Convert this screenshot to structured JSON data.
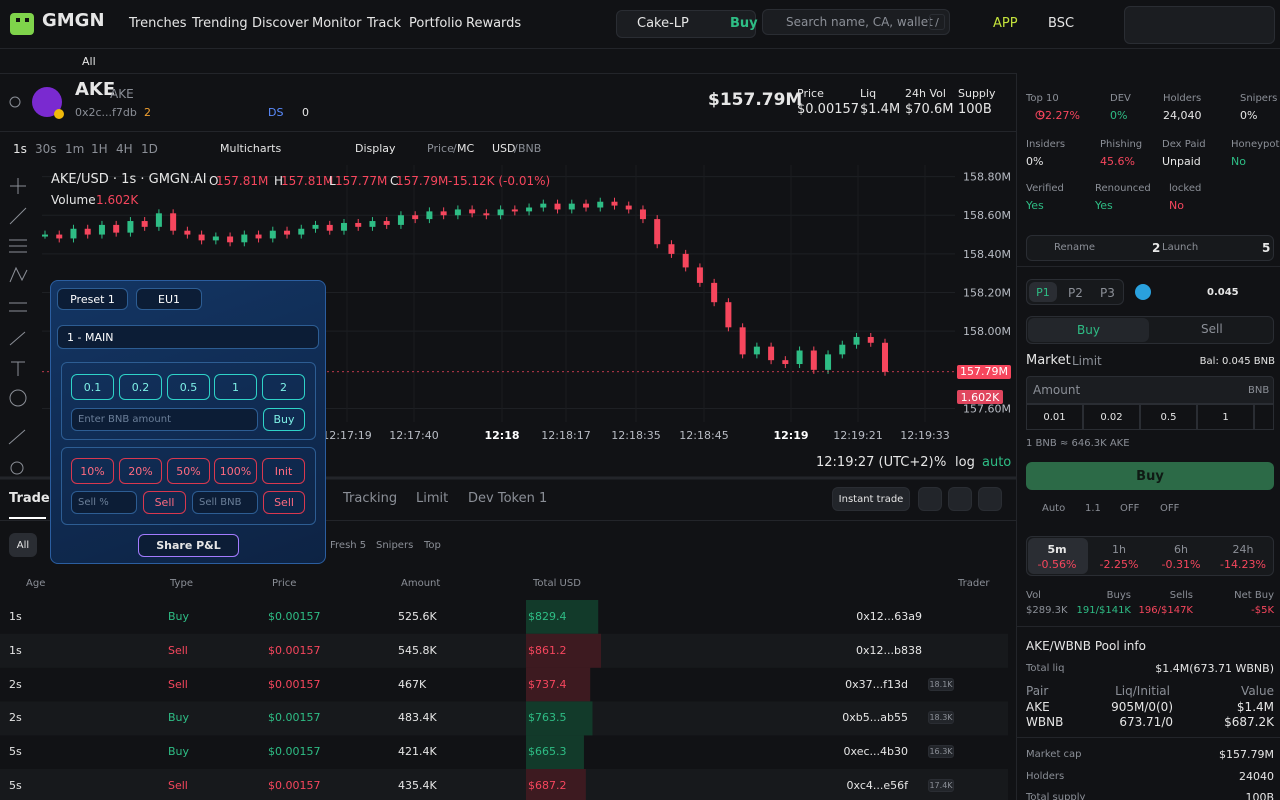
{
  "header": {
    "logo": "GMGN",
    "nav": [
      "Trenches",
      "Trending",
      "Discover",
      "Monitor",
      "Track",
      "Portfolio",
      "Rewards"
    ],
    "quick_pair": "Cake-LP",
    "quick_buy": "Buy",
    "search_placeholder": "Search name, CA, wallet",
    "search_key": "/",
    "app": "APP",
    "chain": "BSC"
  },
  "subbar": {
    "filter": "All"
  },
  "token": {
    "name": "AKE",
    "symbol": "AKE",
    "address": "0x2c...f7db",
    "dev_count": "2",
    "ds": "DS",
    "count": "0",
    "market_cap": "$157.79M",
    "stats": [
      {
        "label": "Price",
        "value": "$0.00157"
      },
      {
        "label": "Liq",
        "value": "$1.4M"
      },
      {
        "label": "24h Vol",
        "value": "$70.6M"
      },
      {
        "label": "Supply",
        "value": "100B"
      }
    ]
  },
  "toolbar": {
    "intervals": [
      "1s",
      "30s",
      "1m",
      "1H",
      "4H",
      "1D"
    ],
    "multicharts": "Multicharts",
    "display": "Display",
    "price": "Price",
    "sep1": "/",
    "mc": "MC",
    "usd": "USD",
    "sep2": "/",
    "bnb": "BNB"
  },
  "chart_data": {
    "type": "candlestick",
    "title": "AKE/USD · 1s · GMGN.AI",
    "ohlc": [
      {
        "label": "O",
        "value": "157.81M"
      },
      {
        "label": "H",
        "value": "157.81M"
      },
      {
        "label": "L",
        "value": "157.77M"
      },
      {
        "label": "C",
        "value": "157.79M"
      }
    ],
    "change": "-15.12K (-0.01%)",
    "volume_label": "Volume",
    "volume": "1.602K",
    "closes": [
      158.5,
      158.48,
      158.53,
      158.5,
      158.55,
      158.51,
      158.57,
      158.54,
      158.61,
      158.52,
      158.5,
      158.47,
      158.49,
      158.46,
      158.5,
      158.48,
      158.52,
      158.5,
      158.53,
      158.55,
      158.52,
      158.56,
      158.54,
      158.57,
      158.55,
      158.6,
      158.58,
      158.62,
      158.6,
      158.63,
      158.61,
      158.6,
      158.63,
      158.62,
      158.64,
      158.66,
      158.63,
      158.66,
      158.64,
      158.67,
      158.65,
      158.63,
      158.58,
      158.45,
      158.4,
      158.33,
      158.25,
      158.15,
      158.02,
      157.88,
      157.92,
      157.85,
      157.83,
      157.9,
      157.8,
      157.88,
      157.93,
      157.97,
      157.94,
      157.79
    ],
    "ylim": [
      157.53,
      158.86
    ],
    "yticks": [
      {
        "value": 158.8,
        "label": "158.80M"
      },
      {
        "value": 158.6,
        "label": "158.60M"
      },
      {
        "value": 158.4,
        "label": "158.40M"
      },
      {
        "value": 158.2,
        "label": "158.20M"
      },
      {
        "value": 158.0,
        "label": "158.00M"
      },
      {
        "value": 157.6,
        "label": "157.60M"
      }
    ],
    "current_price": {
      "value": 157.79,
      "label": "157.79M"
    },
    "current_volume": "1.602K",
    "x_labels": [
      "12:17:19",
      "12:17:40",
      "12:18",
      "12:18:17",
      "12:18:35",
      "12:18:45",
      "12:19",
      "12:19:21",
      "12:19:33"
    ],
    "grid": true,
    "up_color": "#2ebd85",
    "down_color": "#f6465d"
  },
  "chart_footer": {
    "time": "12:19:27 (UTC+2)",
    "percent": "%",
    "log": "log",
    "auto": "auto"
  },
  "panel": {
    "preset": "Preset 1",
    "region": "EU1",
    "wallet": "1 - MAIN",
    "buy_amounts": [
      "0.1",
      "0.2",
      "0.5",
      "1",
      "2"
    ],
    "amount_placeholder": "Enter BNB amount",
    "buy": "Buy",
    "sell_percents": [
      "10%",
      "20%",
      "50%",
      "100%",
      "Init"
    ],
    "sell_pct_placeholder": "Sell %",
    "sell": "Sell",
    "sell_bnb_placeholder": "Sell BNB",
    "sell2": "Sell",
    "share": "Share P&L"
  },
  "tabs": {
    "items": [
      "Trades",
      "Tracking",
      "Limit",
      "Dev Token 1"
    ],
    "instant": "Instant trade",
    "filters": [
      "All",
      "Fresh 5",
      "Snipers",
      "Top"
    ]
  },
  "table": {
    "headers": [
      "Age",
      "Type",
      "Price",
      "Amount",
      "Total USD",
      "Trader"
    ],
    "rows": [
      {
        "age": "1s",
        "type": "Buy",
        "price": "$0.00157",
        "amount": "525.6K",
        "total": {
          "value": 829.4,
          "label": "$829.4"
        },
        "trader": "0x12...63a9"
      },
      {
        "age": "1s",
        "type": "Sell",
        "price": "$0.00157",
        "amount": "545.8K",
        "total": {
          "value": 861.2,
          "label": "$861.2"
        },
        "trader": "0x12...b838"
      },
      {
        "age": "2s",
        "type": "Sell",
        "price": "$0.00157",
        "amount": "467K",
        "total": {
          "value": 737.4,
          "label": "$737.4"
        },
        "trader": "0x37...f13d",
        "badge": "18.1K"
      },
      {
        "age": "2s",
        "type": "Buy",
        "price": "$0.00157",
        "amount": "483.4K",
        "total": {
          "value": 763.5,
          "label": "$763.5"
        },
        "trader": "0xb5...ab55",
        "badge": "18.3K"
      },
      {
        "age": "5s",
        "type": "Buy",
        "price": "$0.00157",
        "amount": "421.4K",
        "total": {
          "value": 665.3,
          "label": "$665.3"
        },
        "trader": "0xec...4b30",
        "badge": "16.3K"
      },
      {
        "age": "5s",
        "type": "Sell",
        "price": "$0.00157",
        "amount": "435.4K",
        "total": {
          "value": 687.2,
          "label": "$687.2"
        },
        "trader": "0xc4...e56f",
        "badge": "17.4K"
      }
    ]
  },
  "side": {
    "audit": [
      {
        "label": "Top 10",
        "value": "92.27%"
      },
      {
        "label": "DEV",
        "value": "0%"
      },
      {
        "label": "Holders",
        "value": "24,040"
      },
      {
        "label": "Snipers",
        "value": "0%"
      },
      {
        "label": "Insiders",
        "value": "0%"
      },
      {
        "label": "Phishing",
        "value": "45.6%"
      },
      {
        "label": "Dex Paid",
        "value": "Unpaid"
      },
      {
        "label": "Honeypot",
        "value": "No"
      },
      {
        "label": "Verified",
        "value": "Yes"
      },
      {
        "label": "Renounced",
        "value": "Yes"
      },
      {
        "label": "locked",
        "value": "No"
      }
    ],
    "rename": "Rename",
    "rename_count": "2",
    "launch": "Launch",
    "launch_count": "5",
    "presets": [
      "P1",
      "P2",
      "P3"
    ],
    "wallet_bal": "0.045",
    "buy_tab": "Buy",
    "sell_tab": "Sell",
    "market": "Market",
    "limit": "Limit",
    "balance": "Bal: 0.045 BNB",
    "amount": "Amount",
    "amount_unit": "BNB",
    "quick": [
      "0.01",
      "0.02",
      "0.5",
      "1"
    ],
    "rate": "1 BNB ≈ 646.3K AKE",
    "buy_button": "Buy",
    "auto": "Auto",
    "slippage": "1.1",
    "off1": "OFF",
    "off2": "OFF",
    "frames": [
      {
        "label": "5m",
        "value": "-0.56%"
      },
      {
        "label": "1h",
        "value": "-2.25%"
      },
      {
        "label": "6h",
        "value": "-0.31%"
      },
      {
        "label": "24h",
        "value": "-14.23%"
      }
    ],
    "flow": [
      {
        "label": "Vol",
        "value": "$289.3K"
      },
      {
        "label": "Buys",
        "value": "191/$141K"
      },
      {
        "label": "Sells",
        "value": "196/$147K"
      },
      {
        "label": "Net Buy",
        "value": "-$5K"
      }
    ],
    "pool_title": "AKE/WBNB Pool info",
    "total_liq_label": "Total liq",
    "total_liq": "$1.4M(673.71 WBNB)",
    "pool_headers": [
      "Pair",
      "Liq/Initial",
      "Value"
    ],
    "pool_rows": [
      [
        "AKE",
        "905M/0(0)",
        "$1.4M"
      ],
      [
        "WBNB",
        "673.71/0",
        "$687.2K"
      ]
    ],
    "info": [
      {
        "label": "Market cap",
        "value": "$157.79M"
      },
      {
        "label": "Holders",
        "value": "24040"
      },
      {
        "label": "Total supply",
        "value": "100B"
      }
    ]
  }
}
